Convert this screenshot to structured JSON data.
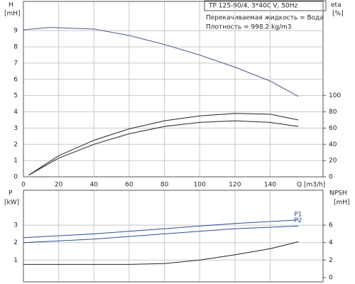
{
  "chart_data": [
    {
      "type": "line",
      "title": "TP 125-90/4, 3*400 V, 50Hz",
      "annotations": [
        "Перекачиваемая жидкость = Вода",
        "Плотность = 998.2 kg/m3"
      ],
      "y_label": [
        "H",
        "[mH]"
      ],
      "y2_label": [
        "eta",
        "[%]"
      ],
      "x_label": "Q [m3/h]",
      "xlim": [
        0,
        170
      ],
      "xticks": [
        0,
        20,
        40,
        60,
        80,
        100,
        120,
        140
      ],
      "ylim": [
        0,
        10.8
      ],
      "yticks": [
        0,
        1,
        2,
        3,
        4,
        5,
        6,
        7,
        8,
        9
      ],
      "y2lim": [
        0,
        216
      ],
      "y2ticks": [
        0,
        20,
        40,
        60,
        80,
        100
      ],
      "grid": true,
      "series": [
        {
          "color": "#4a5a8c",
          "x": [
            0,
            15,
            40,
            60,
            80,
            100,
            120,
            140,
            156
          ],
          "values": [
            9.05,
            9.2,
            9.1,
            8.7,
            8.15,
            7.5,
            6.75,
            5.9,
            4.95
          ]
        },
        {
          "color": "#222222",
          "axis": "y2",
          "x": [
            3,
            20,
            40,
            60,
            80,
            100,
            120,
            140,
            156
          ],
          "values": [
            2,
            26,
            45,
            59,
            69,
            75,
            78,
            77,
            70
          ]
        },
        {
          "color": "#222222",
          "axis": "y2",
          "x": [
            3,
            20,
            40,
            60,
            80,
            100,
            120,
            140,
            156
          ],
          "values": [
            2,
            23,
            40,
            53,
            62,
            67,
            69,
            67,
            62
          ]
        }
      ]
    },
    {
      "type": "line",
      "y_label": [
        "P",
        "[kW]"
      ],
      "y2_label": [
        "NPSH",
        "[mH]"
      ],
      "xlim": [
        0,
        170
      ],
      "ylim": [
        -0.25,
        5
      ],
      "yticks": [
        1,
        2,
        3
      ],
      "y2lim": [
        -0.5,
        10
      ],
      "y2ticks": [
        0,
        2,
        4,
        6
      ],
      "grid": true,
      "series": [
        {
          "name": "P1",
          "color": "#2a4f8f",
          "x": [
            0,
            40,
            80,
            120,
            156
          ],
          "values": [
            2.28,
            2.5,
            2.8,
            3.1,
            3.3
          ]
        },
        {
          "name": "P2",
          "color": "#2a4f8f",
          "x": [
            0,
            40,
            80,
            120,
            156
          ],
          "values": [
            2.0,
            2.2,
            2.5,
            2.8,
            2.95
          ]
        },
        {
          "color": "#222222",
          "axis": "y2",
          "x": [
            0,
            60,
            80,
            100,
            120,
            140,
            156
          ],
          "values": [
            1.5,
            1.5,
            1.6,
            2.0,
            2.6,
            3.3,
            4.1
          ]
        }
      ]
    }
  ]
}
